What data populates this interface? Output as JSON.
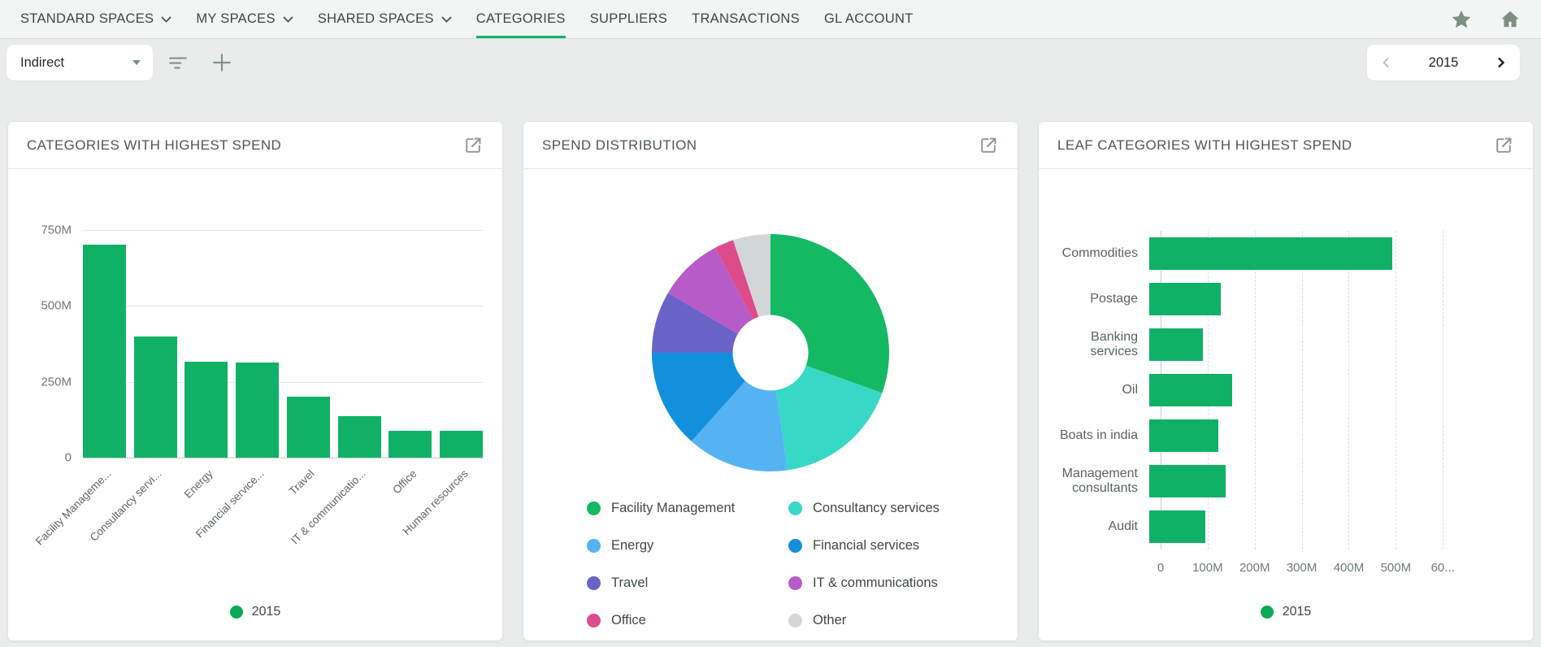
{
  "app": {
    "background": "#e9eceb",
    "accent_green": "#0db36b"
  },
  "nav": {
    "tabs": [
      {
        "label": "STANDARD SPACES",
        "dropdown": true,
        "active": false
      },
      {
        "label": "MY SPACES",
        "dropdown": true,
        "active": false
      },
      {
        "label": "SHARED SPACES",
        "dropdown": true,
        "active": false
      },
      {
        "label": "CATEGORIES",
        "dropdown": false,
        "active": true
      },
      {
        "label": "SUPPLIERS",
        "dropdown": false,
        "active": false
      },
      {
        "label": "TRANSACTIONS",
        "dropdown": false,
        "active": false
      },
      {
        "label": "GL ACCOUNT",
        "dropdown": false,
        "active": false
      }
    ],
    "action_icons": [
      "star-icon",
      "home-icon"
    ],
    "icon_color": "#7c9082"
  },
  "toolbar": {
    "dimension": {
      "value": "Indirect",
      "icon": "chevron-down-icon"
    },
    "action_icons": [
      "filter-icon",
      "plus-icon"
    ],
    "year_selector": {
      "value": "2015",
      "prev_icon": "chevron-left-icon",
      "next_icon": "chevron-right-icon"
    }
  },
  "cards": [
    {
      "title": "CATEGORIES WITH HIGHEST SPEND",
      "export_icon": "open-in-new-icon",
      "chart_data": {
        "type": "bar",
        "categories": [
          "Facility Manageme...",
          "Consultancy servi...",
          "Energy",
          "Financial service...",
          "Travel",
          "IT & communicatio...",
          "Office",
          "Human resources"
        ],
        "values_millions": [
          700,
          398,
          316,
          313,
          201,
          137,
          89,
          88
        ],
        "y_ticks": [
          {
            "label": "750M",
            "value": 750
          },
          {
            "label": "500M",
            "value": 500
          },
          {
            "label": "250M",
            "value": 250
          },
          {
            "label": "0",
            "value": 0
          }
        ],
        "ylim": [
          0,
          800
        ],
        "grid": true,
        "bar_color": "#10b167",
        "legend": "2015",
        "legend_color": "#0bab56",
        "legend_position": "bottom"
      }
    },
    {
      "title": "SPEND DISTRIBUTION",
      "export_icon": "open-in-new-icon",
      "chart_data": {
        "type": "pie",
        "donut": true,
        "segments": [
          {
            "label": "Facility Management",
            "percent": 30.5,
            "color": "#15b863"
          },
          {
            "label": "Consultancy services",
            "percent": 17.2,
            "color": "#38d8c6"
          },
          {
            "label": "Energy",
            "percent": 13.9,
            "color": "#55b3f4"
          },
          {
            "label": "Financial services",
            "percent": 13.4,
            "color": "#1390dc"
          },
          {
            "label": "Travel",
            "percent": 8.4,
            "color": "#6a63c7"
          },
          {
            "label": "IT & communications",
            "percent": 8.9,
            "color": "#b75bc8"
          },
          {
            "label": "Office",
            "percent": 2.6,
            "color": "#dd4b8d"
          },
          {
            "label": "Other",
            "percent": 5.1,
            "color": "#d2d6d9"
          }
        ],
        "legend_position": "bottom"
      }
    },
    {
      "title": "LEAF CATEGORIES WITH HIGHEST SPEND",
      "export_icon": "open-in-new-icon",
      "chart_data": {
        "type": "bar-horizontal",
        "categories": [
          "Commodities",
          "Postage",
          "Banking services",
          "Oil",
          "Boats in india",
          "Management consultants",
          "Audit"
        ],
        "values_millions": [
          500,
          148,
          111,
          170,
          143,
          158,
          116
        ],
        "x_ticks": [
          {
            "label": "0",
            "value": 0
          },
          {
            "label": "100M",
            "value": 100
          },
          {
            "label": "200M",
            "value": 200
          },
          {
            "label": "300M",
            "value": 300
          },
          {
            "label": "400M",
            "value": 400
          },
          {
            "label": "500M",
            "value": 500
          },
          {
            "label": "60...",
            "value": 600
          }
        ],
        "xlim": [
          0,
          750
        ],
        "grid": true,
        "bar_color": "#10b167",
        "legend": "2015",
        "legend_color": "#0bab56",
        "legend_position": "bottom"
      }
    }
  ]
}
